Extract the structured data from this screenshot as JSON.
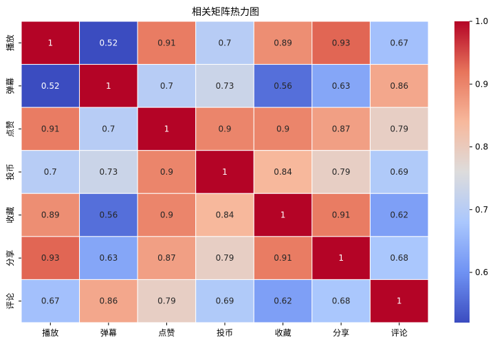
{
  "chart_data": {
    "type": "heatmap",
    "title": "相关矩阵热力图",
    "categories": [
      "播放",
      "弹幕",
      "点赞",
      "投币",
      "收藏",
      "分享",
      "评论"
    ],
    "values": [
      [
        1,
        0.52,
        0.91,
        0.7,
        0.89,
        0.93,
        0.67
      ],
      [
        0.52,
        1,
        0.7,
        0.73,
        0.56,
        0.63,
        0.86
      ],
      [
        0.91,
        0.7,
        1,
        0.9,
        0.9,
        0.87,
        0.79
      ],
      [
        0.7,
        0.73,
        0.9,
        1,
        0.84,
        0.79,
        0.69
      ],
      [
        0.89,
        0.56,
        0.9,
        0.84,
        1,
        0.91,
        0.62
      ],
      [
        0.93,
        0.63,
        0.87,
        0.79,
        0.91,
        1,
        0.68
      ],
      [
        0.67,
        0.86,
        0.79,
        0.69,
        0.62,
        0.68,
        1
      ]
    ],
    "labels": [
      [
        "1",
        "0.52",
        "0.91",
        "0.7",
        "0.89",
        "0.93",
        "0.67"
      ],
      [
        "0.52",
        "1",
        "0.7",
        "0.73",
        "0.56",
        "0.63",
        "0.86"
      ],
      [
        "0.91",
        "0.7",
        "1",
        "0.9",
        "0.9",
        "0.87",
        "0.79"
      ],
      [
        "0.7",
        "0.73",
        "0.9",
        "1",
        "0.84",
        "0.79",
        "0.69"
      ],
      [
        "0.89",
        "0.56",
        "0.9",
        "0.84",
        "1",
        "0.91",
        "0.62"
      ],
      [
        "0.93",
        "0.63",
        "0.87",
        "0.79",
        "0.91",
        "1",
        "0.68"
      ],
      [
        "0.67",
        "0.86",
        "0.79",
        "0.69",
        "0.62",
        "0.68",
        "1"
      ]
    ],
    "colorbar": {
      "range": [
        0.52,
        1.0
      ],
      "ticks": [
        0.6,
        0.7,
        0.8,
        0.9,
        1.0
      ],
      "tick_labels": [
        "0.6",
        "0.7",
        "0.8",
        "0.9",
        "1.0"
      ]
    },
    "colormap": "coolwarm",
    "colormap_stops": [
      "#3b4cc0",
      "#6f92f3",
      "#aac7fd",
      "#dddcdc",
      "#f7b89c",
      "#e7745b",
      "#b40426"
    ]
  }
}
